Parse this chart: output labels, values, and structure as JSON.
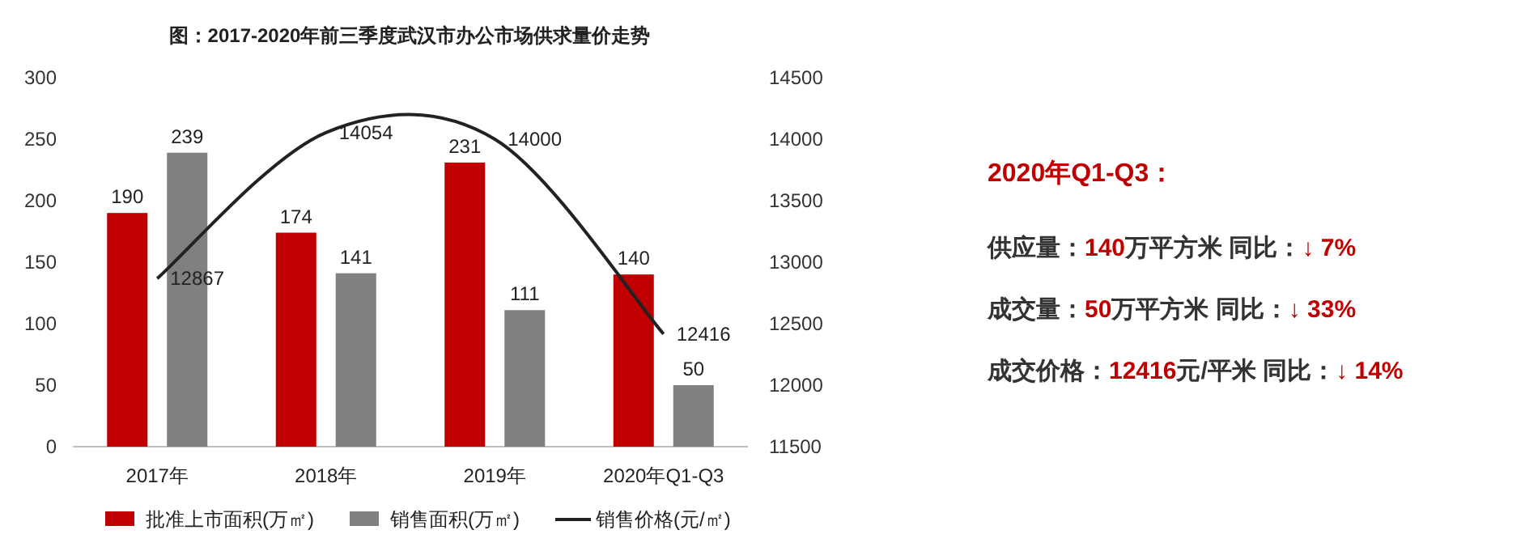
{
  "chart_data": [
    {
      "type": "bar",
      "title": "图：2017-2020年前三季度武汉市办公市场供求量价走势",
      "categories": [
        "2017年",
        "2018年",
        "2019年",
        "2020年Q1-Q3"
      ],
      "series": [
        {
          "name": "批准上市面积(万㎡)",
          "color": "#c00000",
          "values": [
            190,
            174,
            231,
            140
          ]
        },
        {
          "name": "销售面积(万㎡)",
          "color": "#808080",
          "values": [
            239,
            141,
            111,
            50
          ]
        },
        {
          "name": "销售价格(元/㎡)",
          "type": "line",
          "axis": "y2",
          "color": "#222222",
          "values": [
            12867,
            14054,
            14000,
            12416
          ]
        }
      ],
      "ylim": [
        0,
        300
      ],
      "yticks": [
        0,
        50,
        100,
        150,
        200,
        250,
        300
      ],
      "y2lim": [
        11500,
        14500
      ],
      "y2ticks": [
        11500,
        12000,
        12500,
        13000,
        13500,
        14000,
        14500
      ],
      "data_labels": true,
      "legend": "bottom",
      "grid": false
    },
    {
      "type": "other",
      "title": "2020年Q1-Q3：",
      "annotations": [
        "供应量：140万平方米  同比：↓ 7%",
        "成交量：50万平方米  同比：↓ 33%",
        "成交价格：12416元/平米  同比：↓ 14%"
      ]
    }
  ]
}
